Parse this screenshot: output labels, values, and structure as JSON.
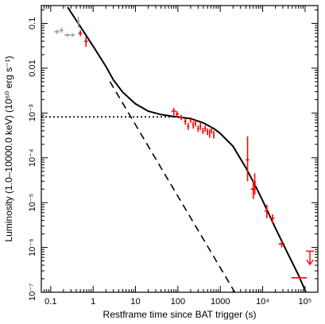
{
  "chart_data": {
    "type": "scatter",
    "xlabel": "Restframe time since BAT trigger (s)",
    "ylabel": "Luminosity (1.0–10000.0 keV) (10⁵⁰ erg s⁻¹)",
    "xscale": "log",
    "yscale": "log",
    "xlim": [
      0.06,
      200000
    ],
    "ylim": [
      1e-07,
      0.25
    ],
    "x_ticks": [
      {
        "value": 0.1,
        "label": "0.1"
      },
      {
        "value": 1,
        "label": "1"
      },
      {
        "value": 10,
        "label": "10"
      },
      {
        "value": 100,
        "label": "100"
      },
      {
        "value": 1000,
        "label": "1000"
      },
      {
        "value": 10000,
        "label": "10⁴"
      },
      {
        "value": 100000,
        "label": "10⁵"
      }
    ],
    "y_ticks": [
      {
        "value": 1e-07,
        "label": "10⁻⁷"
      },
      {
        "value": 1e-06,
        "label": "10⁻⁶"
      },
      {
        "value": 1e-05,
        "label": "10⁻⁵"
      },
      {
        "value": 0.0001,
        "label": "10⁻⁴"
      },
      {
        "value": 0.001,
        "label": "10⁻³"
      },
      {
        "value": 0.01,
        "label": "0.01"
      },
      {
        "value": 0.1,
        "label": "0.1"
      }
    ],
    "series": [
      {
        "color": "#a0a0a0",
        "points": [
          {
            "x": 0.14,
            "y": 0.065,
            "xerr": [
              0.12,
              0.16
            ],
            "yerr": [
              0.058,
              0.072
            ]
          },
          {
            "x": 0.18,
            "y": 0.07,
            "xerr": [
              0.16,
              0.2
            ],
            "yerr": [
              0.062,
              0.08
            ]
          },
          {
            "x": 0.25,
            "y": 0.055,
            "xerr": [
              0.21,
              0.29
            ],
            "yerr": [
              0.05,
              0.06
            ]
          },
          {
            "x": 0.33,
            "y": 0.055,
            "xerr": [
              0.29,
              0.37
            ],
            "yerr": [
              0.05,
              0.06
            ]
          },
          {
            "x": 0.45,
            "y": 0.11,
            "xerr": [
              0.42,
              0.48
            ],
            "yerr": [
              0.08,
              0.14
            ]
          }
        ]
      },
      {
        "color": "#ff0000",
        "points": [
          {
            "x": 0.5,
            "y": 0.06,
            "xerr": [
              0.45,
              0.55
            ],
            "yerr": [
              0.052,
              0.07
            ]
          },
          {
            "x": 0.68,
            "y": 0.04,
            "xerr": [
              0.62,
              0.75
            ],
            "yerr": [
              0.03,
              0.05
            ]
          },
          {
            "x": 80,
            "y": 0.0011,
            "xerr": [
              70,
              90
            ],
            "yerr": [
              0.0009,
              0.0013
            ]
          },
          {
            "x": 95,
            "y": 0.00095,
            "xerr": [
              88,
              105
            ],
            "yerr": [
              0.0008,
              0.0011
            ]
          },
          {
            "x": 120,
            "y": 0.0008,
            "xerr": [
              110,
              130
            ],
            "yerr": [
              0.0007,
              0.0009
            ]
          },
          {
            "x": 150,
            "y": 0.00065,
            "xerr": [
              140,
              160
            ],
            "yerr": [
              0.00055,
              0.00075
            ]
          },
          {
            "x": 175,
            "y": 0.0005,
            "xerr": [
              165,
              185
            ],
            "yerr": [
              0.00042,
              0.0006
            ]
          },
          {
            "x": 200,
            "y": 0.0007,
            "xerr": [
              190,
              210
            ],
            "yerr": [
              0.0006,
              0.0008
            ]
          },
          {
            "x": 230,
            "y": 0.00055,
            "xerr": [
              220,
              240
            ],
            "yerr": [
              0.00045,
              0.00065
            ]
          },
          {
            "x": 260,
            "y": 0.0006,
            "xerr": [
              250,
              270
            ],
            "yerr": [
              0.0005,
              0.0007
            ]
          },
          {
            "x": 300,
            "y": 0.00045,
            "xerr": [
              285,
              315
            ],
            "yerr": [
              0.00038,
              0.00053
            ]
          },
          {
            "x": 340,
            "y": 0.0005,
            "xerr": [
              325,
              355
            ],
            "yerr": [
              0.00042,
              0.0006
            ]
          },
          {
            "x": 390,
            "y": 0.0004,
            "xerr": [
              370,
              410
            ],
            "yerr": [
              0.00034,
              0.00047
            ]
          },
          {
            "x": 440,
            "y": 0.00045,
            "xerr": [
              420,
              460
            ],
            "yerr": [
              0.00038,
              0.00053
            ]
          },
          {
            "x": 500,
            "y": 0.00038,
            "xerr": [
              480,
              520
            ],
            "yerr": [
              0.00032,
              0.00045
            ]
          },
          {
            "x": 560,
            "y": 0.00035,
            "xerr": [
              540,
              580
            ],
            "yerr": [
              0.00028,
              0.00043
            ]
          },
          {
            "x": 620,
            "y": 0.00042,
            "xerr": [
              600,
              640
            ],
            "yerr": [
              0.00035,
              0.0005
            ]
          },
          {
            "x": 700,
            "y": 0.00033,
            "xerr": [
              680,
              720
            ],
            "yerr": [
              0.00027,
              0.0004
            ]
          },
          {
            "x": 4400,
            "y": 9e-05,
            "xerr": [
              4000,
              4800
            ],
            "yerr": [
              3e-05,
              0.0003
            ]
          },
          {
            "x": 6000,
            "y": 2e-05,
            "xerr": [
              5200,
              6800
            ],
            "yerr": [
              1.2e-05,
              3e-05
            ]
          },
          {
            "x": 6500,
            "y": 2.8e-05,
            "xerr": [
              6000,
              7000
            ],
            "yerr": [
              1.5e-05,
              4.5e-05
            ]
          },
          {
            "x": 12500,
            "y": 6.5e-06,
            "xerr": [
              11000,
              14000
            ],
            "yerr": [
              4.5e-06,
              9e-06
            ]
          },
          {
            "x": 17000,
            "y": 4.5e-06,
            "xerr": [
              15000,
              19000
            ],
            "yerr": [
              3.5e-06,
              5.5e-06
            ]
          },
          {
            "x": 28000,
            "y": 1.2e-06,
            "xerr": [
              24000,
              33000
            ],
            "yerr": [
              1e-06,
              1.4e-06
            ]
          },
          {
            "x": 75000,
            "y": 2.1e-07,
            "xerr": [
              48000,
              110000
            ],
            "yerr": [
              1.9e-07,
              2.3e-07
            ]
          }
        ]
      }
    ],
    "upper_limits": [
      {
        "x": 130000,
        "y": 5.5e-07,
        "color": "#ff0000"
      }
    ],
    "lines": [
      {
        "style": "solid",
        "color": "#000000",
        "points": [
          [
            0.25,
            0.23
          ],
          [
            0.5,
            0.085
          ],
          [
            1,
            0.031
          ],
          [
            2,
            0.011
          ],
          [
            3,
            0.0055
          ],
          [
            5,
            0.0029
          ],
          [
            10,
            0.0016
          ],
          [
            20,
            0.0011
          ],
          [
            40,
            0.00092
          ],
          [
            70,
            0.00085
          ],
          [
            100,
            0.00082
          ],
          [
            200,
            0.00075
          ],
          [
            400,
            0.0006
          ],
          [
            700,
            0.00045
          ],
          [
            1000,
            0.00035
          ],
          [
            2000,
            0.00018
          ],
          [
            4000,
            6e-05
          ],
          [
            7000,
            2.2e-05
          ],
          [
            10000,
            1.1e-05
          ],
          [
            20000,
            2.7e-06
          ],
          [
            40000,
            7e-07
          ],
          [
            70000,
            2.4e-07
          ],
          [
            100000,
            1.1e-07
          ],
          [
            120000,
            7.5e-08
          ]
        ]
      },
      {
        "style": "dashed",
        "color": "#000000",
        "points": [
          [
            2.5,
            0.005
          ],
          [
            2200,
            1e-07
          ]
        ]
      },
      {
        "style": "dotted",
        "color": "#000000",
        "points": [
          [
            0.06,
            0.00082
          ],
          [
            100,
            0.00082
          ]
        ]
      }
    ]
  }
}
